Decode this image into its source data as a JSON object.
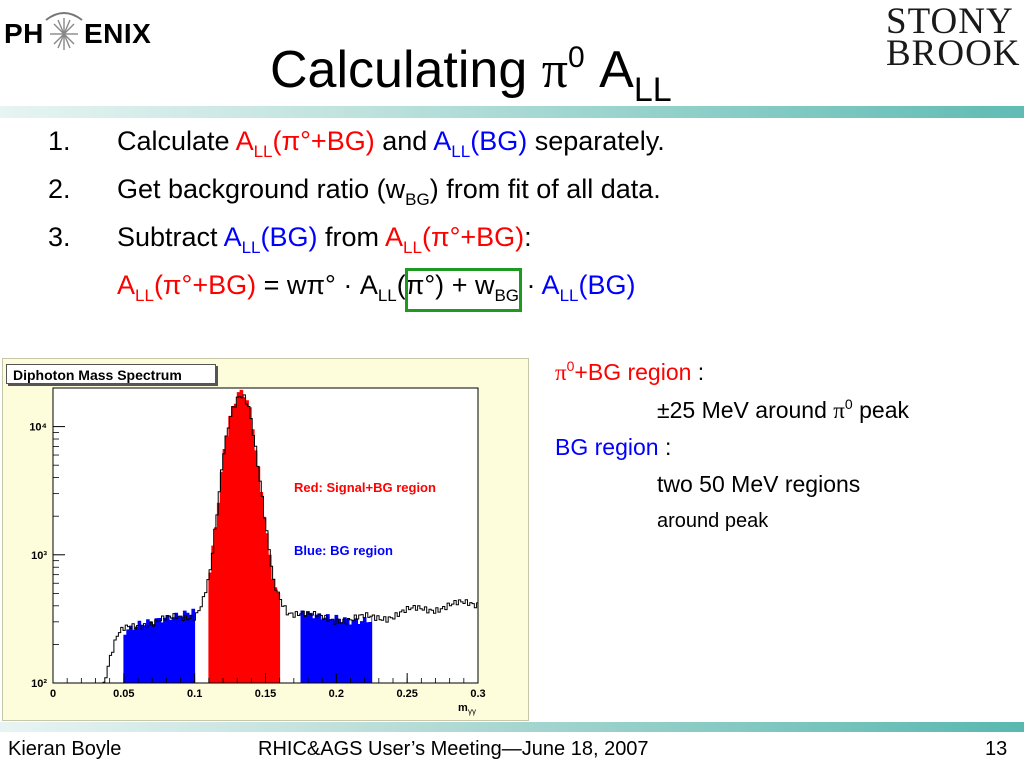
{
  "header": {
    "logo_left": {
      "text_left": "PH",
      "text_right": "ENIX",
      "icon": "starburst-icon"
    },
    "title_main": "Calculating ",
    "title_pi": "π",
    "title_sup": "0",
    "title_a": " A",
    "title_sub": "LL",
    "logo_right": {
      "line1": "STONY",
      "line2": "BROOK"
    }
  },
  "steps": [
    {
      "num": "1.",
      "p1": "Calculate ",
      "a": "A",
      "ll": "LL",
      "sig": "(π°+BG)",
      "and": " and ",
      "a2": "A",
      "ll2": "LL",
      "bg": "(BG)",
      "end": " separately."
    },
    {
      "num": "2.",
      "p1": "Get background ratio (w",
      "bgsub": "BG",
      "end": ") from fit of all data."
    },
    {
      "num": "3.",
      "p1": "Subtract ",
      "a": "A",
      "ll": "LL",
      "bg": "(BG)",
      "from": " from ",
      "a2": "A",
      "ll2": "LL",
      "sig": "(π°+BG)",
      "colon": ":"
    }
  ],
  "equation": {
    "lhs_a": "A",
    "lhs_ll": "LL",
    "lhs_sig": "(π°+BG)",
    "eq": " = wπ° · ",
    "mid_a": "A",
    "mid_ll": "LL",
    "mid_pi": "(π°)",
    "plus": " + w",
    "wbg": "BG",
    "dot": " · ",
    "rhs_a": "A",
    "rhs_ll": "LL",
    "rhs_bg": "(BG)"
  },
  "chart_data": {
    "type": "area",
    "title": "Diphoton Mass Spectrum",
    "xlabel": "m",
    "xlabel_sub": "γγ",
    "xlim": [
      0,
      0.3
    ],
    "ylim": [
      100,
      20000
    ],
    "log_y": true,
    "x_ticks": [
      0,
      0.05,
      0.1,
      0.15,
      0.2,
      0.25,
      0.3
    ],
    "x_tick_labels": [
      "0",
      "0.05",
      "0.1",
      "0.15",
      "0.2",
      "0.25",
      "0.3"
    ],
    "y_ticks": [
      100,
      1000,
      10000
    ],
    "y_tick_labels": [
      "10²",
      "10³",
      "10⁴"
    ],
    "annotations": [
      {
        "text": "Red: Signal+BG region",
        "color": "#ff0000"
      },
      {
        "text": "Blue: BG region",
        "color": "#0000ff"
      }
    ],
    "regions": [
      {
        "name": "BG region low",
        "x_range": [
          0.05,
          0.1
        ],
        "color": "#0000ff"
      },
      {
        "name": "Signal+BG region",
        "x_range": [
          0.11,
          0.16
        ],
        "color": "#ff0000"
      },
      {
        "name": "BG region high",
        "x_range": [
          0.175,
          0.225
        ],
        "color": "#0000ff"
      }
    ],
    "spectrum": {
      "x": [
        0.035,
        0.04,
        0.045,
        0.05,
        0.06,
        0.07,
        0.08,
        0.09,
        0.1,
        0.105,
        0.11,
        0.115,
        0.12,
        0.125,
        0.13,
        0.1325,
        0.135,
        0.1375,
        0.14,
        0.145,
        0.15,
        0.155,
        0.16,
        0.165,
        0.17,
        0.175,
        0.18,
        0.19,
        0.2,
        0.21,
        0.22,
        0.23,
        0.24,
        0.25,
        0.26,
        0.27,
        0.28,
        0.29,
        0.3
      ],
      "y": [
        100,
        160,
        230,
        260,
        290,
        300,
        310,
        325,
        350,
        440,
        700,
        2000,
        6500,
        13000,
        18000,
        18500,
        17500,
        14500,
        10000,
        3900,
        1450,
        600,
        450,
        370,
        360,
        350,
        330,
        320,
        320,
        310,
        320,
        330,
        340,
        360,
        380,
        390,
        400,
        410,
        420
      ]
    }
  },
  "right_panel": {
    "sig_pi": "π",
    "sig_sup": "0",
    "sig_label": "+BG region",
    "sig_colon": " :",
    "sig_detail_a": "±25 MeV around  ",
    "sig_detail_pi": "π",
    "sig_detail_sup": "0",
    "sig_detail_b": " peak",
    "bg_label": "BG region",
    "bg_colon": " :",
    "bg_detail1": "two 50 MeV regions",
    "bg_detail2": "around peak"
  },
  "footer": {
    "author": "Kieran Boyle",
    "meeting": "RHIC&AGS User’s Meeting—June 18, 2007",
    "page": "13"
  }
}
